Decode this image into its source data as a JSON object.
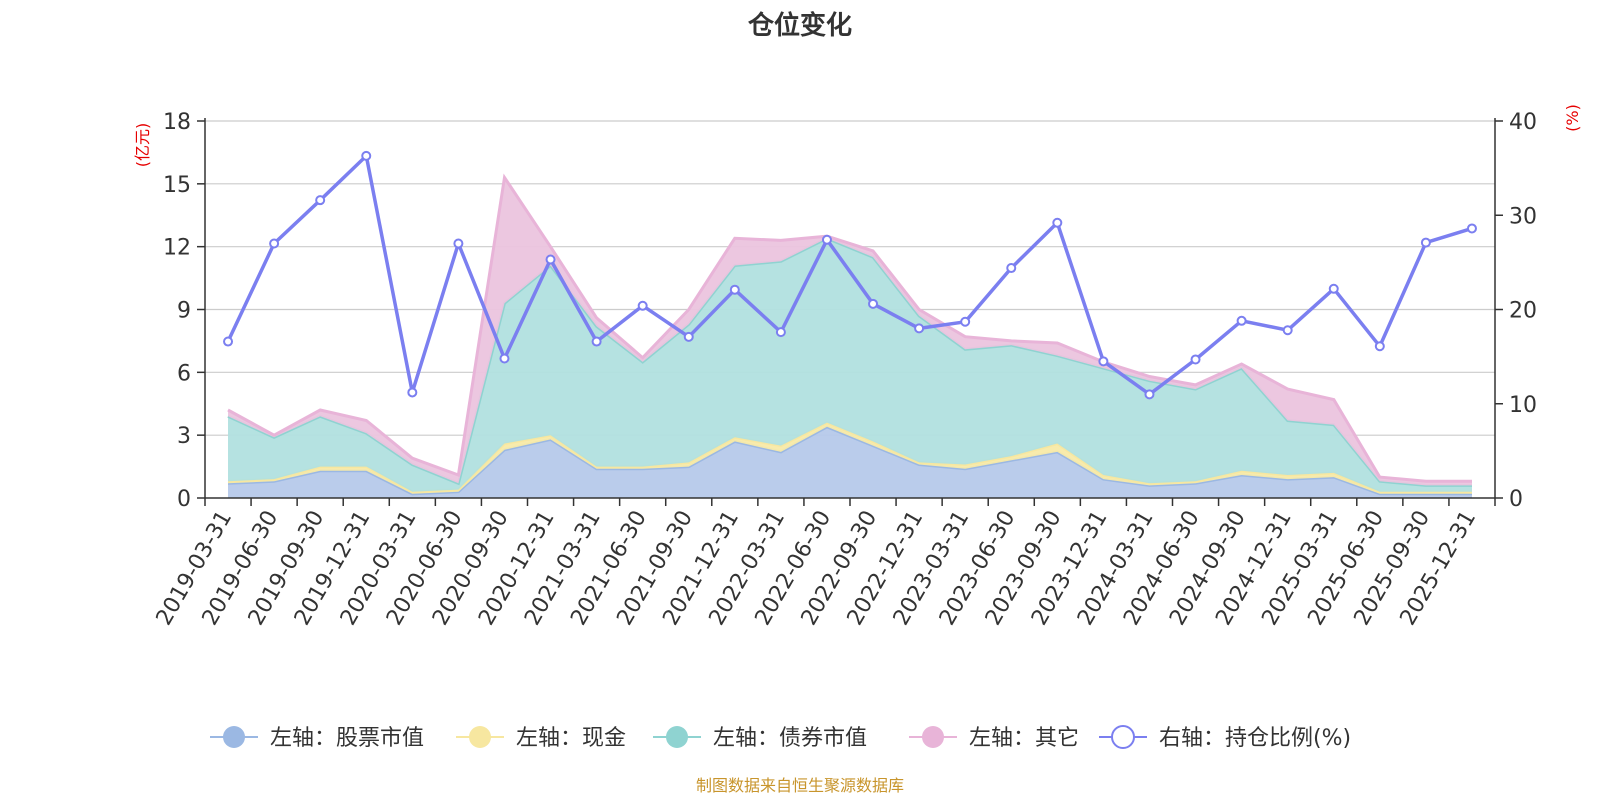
{
  "chart_data": {
    "type": "area",
    "title": "仓位变化",
    "left_unit": "(亿元)",
    "right_unit": "(%)",
    "left_axis": {
      "min": 0,
      "max": 18,
      "ticks": [
        0,
        3,
        6,
        9,
        12,
        15,
        18
      ]
    },
    "right_axis": {
      "min": 0,
      "max": 40,
      "ticks": [
        0,
        10,
        20,
        30,
        40
      ]
    },
    "categories": [
      "2019-03-31",
      "2019-06-30",
      "2019-09-30",
      "2019-12-31",
      "2020-03-31",
      "2020-06-30",
      "2020-09-30",
      "2020-12-31",
      "2021-03-31",
      "2021-06-30",
      "2021-09-30",
      "2021-12-31",
      "2022-03-31",
      "2022-06-30",
      "2022-09-30",
      "2022-12-31",
      "2023-03-31",
      "2023-06-30",
      "2023-09-30",
      "2023-12-31",
      "2024-03-31",
      "2024-06-30",
      "2024-09-30",
      "2024-12-31",
      "2025-03-31",
      "2025-06-30",
      "2025-09-30",
      "2025-12-31"
    ],
    "stacked_series": [
      {
        "name": "左轴：股票市值",
        "color": "#9bb8e3",
        "fill": "#b6c9ea",
        "values": [
          0.7,
          0.8,
          1.3,
          1.3,
          0.2,
          0.3,
          2.3,
          2.8,
          1.4,
          1.4,
          1.5,
          2.7,
          2.2,
          3.4,
          2.5,
          1.6,
          1.4,
          1.8,
          2.2,
          0.9,
          0.6,
          0.7,
          1.1,
          0.9,
          1.0,
          0.2,
          0.2,
          0.2
        ]
      },
      {
        "name": "左轴：现金",
        "color": "#f7e7a0",
        "fill": "#f8eaa8",
        "values": [
          0.1,
          0.1,
          0.2,
          0.2,
          0.1,
          0.1,
          0.3,
          0.2,
          0.1,
          0.1,
          0.2,
          0.2,
          0.3,
          0.2,
          0.2,
          0.1,
          0.2,
          0.2,
          0.4,
          0.2,
          0.1,
          0.1,
          0.2,
          0.2,
          0.2,
          0.1,
          0.1,
          0.1
        ]
      },
      {
        "name": "左轴：债券市值",
        "color": "#8fd3d1",
        "fill": "#b1e0df",
        "values": [
          3.1,
          2.0,
          2.4,
          1.6,
          1.3,
          0.3,
          6.7,
          8.1,
          6.7,
          5.0,
          6.6,
          8.2,
          8.8,
          8.8,
          8.8,
          7.0,
          5.5,
          5.3,
          4.2,
          5.1,
          4.9,
          4.4,
          4.9,
          2.6,
          2.3,
          0.5,
          0.3,
          0.3
        ]
      },
      {
        "name": "左轴：其它",
        "color": "#e8b4d8",
        "fill": "#ebc4de",
        "values": [
          0.3,
          0.1,
          0.3,
          0.6,
          0.3,
          0.4,
          6.0,
          0.9,
          0.4,
          0.2,
          0.7,
          1.3,
          1.0,
          0.1,
          0.3,
          0.3,
          0.6,
          0.2,
          0.6,
          0.3,
          0.2,
          0.2,
          0.2,
          1.5,
          1.2,
          0.2,
          0.2,
          0.2
        ]
      }
    ],
    "line_series": {
      "name": "右轴：持仓比例(%)",
      "axis": "right",
      "color": "#7b7ff0",
      "values": [
        16.6,
        27.0,
        31.6,
        36.3,
        11.2,
        27.0,
        14.8,
        25.3,
        16.6,
        20.4,
        17.1,
        22.1,
        17.6,
        27.4,
        20.6,
        18.0,
        18.7,
        24.4,
        29.2,
        14.5,
        11.0,
        14.7,
        18.8,
        17.8,
        22.2,
        16.1,
        27.1,
        28.6
      ]
    },
    "legend_position": "bottom",
    "source": "制图数据来自恒生聚源数据库"
  }
}
